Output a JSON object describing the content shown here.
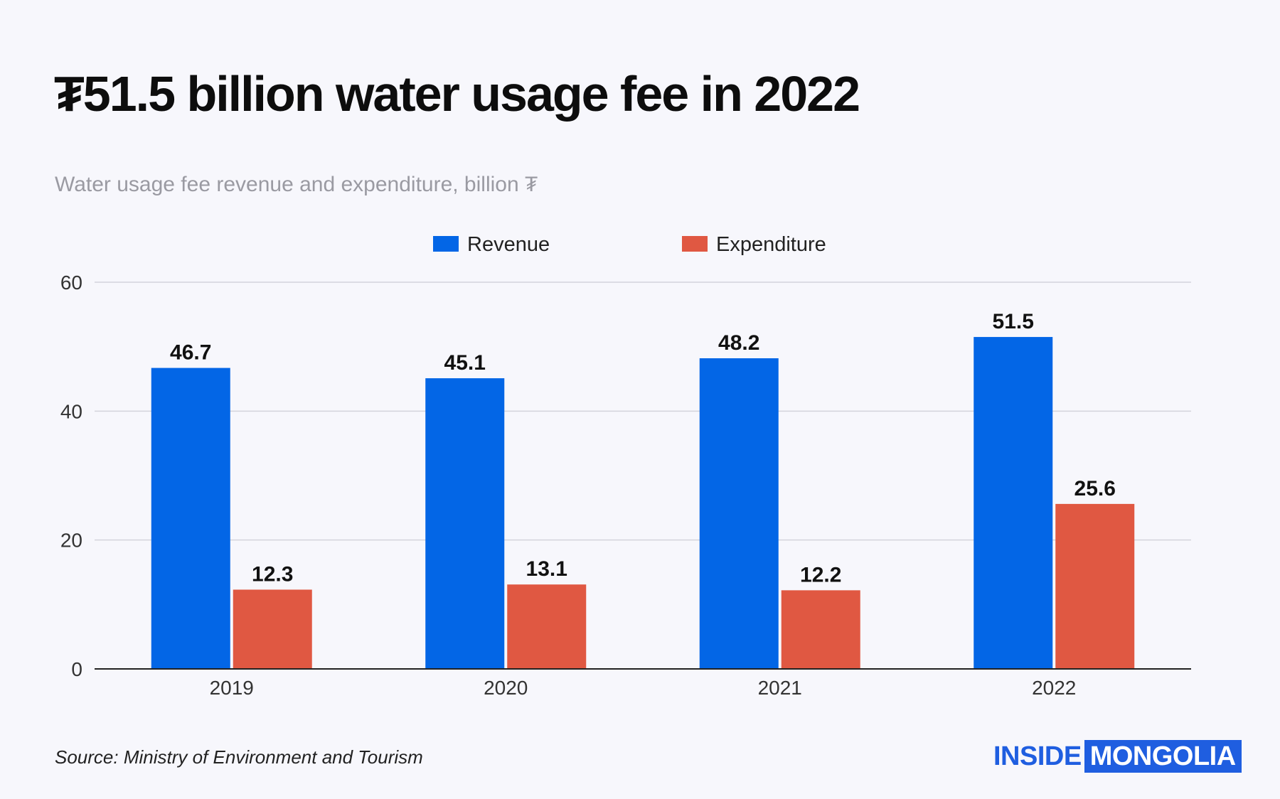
{
  "header": {
    "title": "₮51.5 billion water usage fee in 2022",
    "subtitle": "Water usage fee revenue and expenditure, billion ₮"
  },
  "footer": {
    "source": "Source: Ministry of Environment and Tourism",
    "logo_part1": "INSIDE",
    "logo_part2": "MONGOLIA"
  },
  "colors": {
    "revenue": "#0366e6",
    "expenditure": "#e05842",
    "logo": "#1f5ee0"
  },
  "chart_data": {
    "type": "bar",
    "categories": [
      "2019",
      "2020",
      "2021",
      "2022"
    ],
    "series": [
      {
        "name": "Revenue",
        "values": [
          46.7,
          45.1,
          48.2,
          51.5
        ]
      },
      {
        "name": "Expenditure",
        "values": [
          12.3,
          13.1,
          12.2,
          25.6
        ]
      }
    ],
    "data_labels": [
      [
        "46.7",
        "45.1",
        "48.2",
        "51.5"
      ],
      [
        "12.3",
        "13.1",
        "12.2",
        "25.6"
      ]
    ],
    "title": "₮51.5 billion water usage fee in 2022",
    "ylabel": "Water usage fee revenue and expenditure, billion ₮",
    "xlabel": "",
    "ylim": [
      0,
      60
    ],
    "yticks": [
      0,
      20,
      40,
      60
    ],
    "ytick_labels": [
      "0",
      "20",
      "40",
      "60"
    ],
    "grid": true,
    "legend_position": "top-center"
  }
}
